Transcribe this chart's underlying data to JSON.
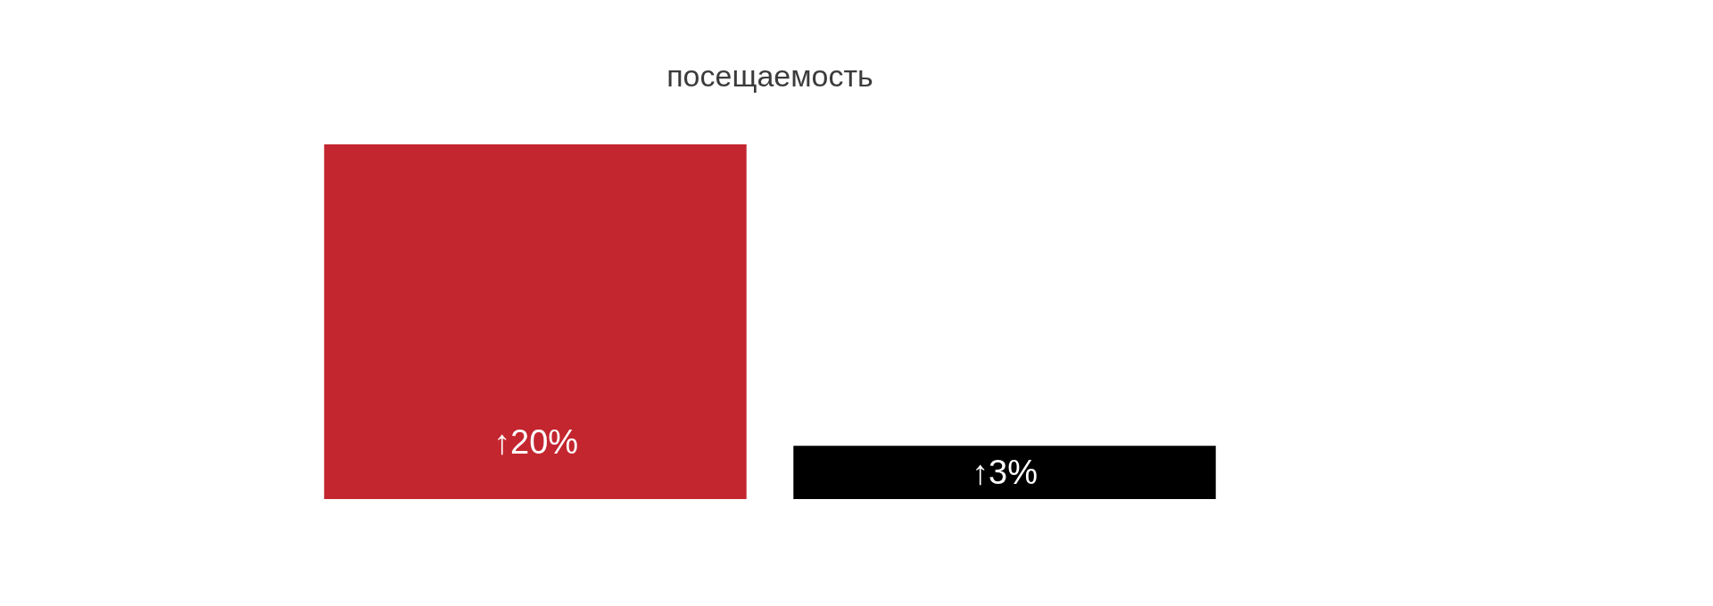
{
  "chart_data": {
    "type": "bar",
    "title": "посещаемость",
    "categories": [
      null,
      null
    ],
    "values": [
      20,
      3
    ],
    "colors": [
      "#c3262f",
      "#000000"
    ],
    "value_labels": [
      "↑20%",
      "↑3%"
    ]
  }
}
